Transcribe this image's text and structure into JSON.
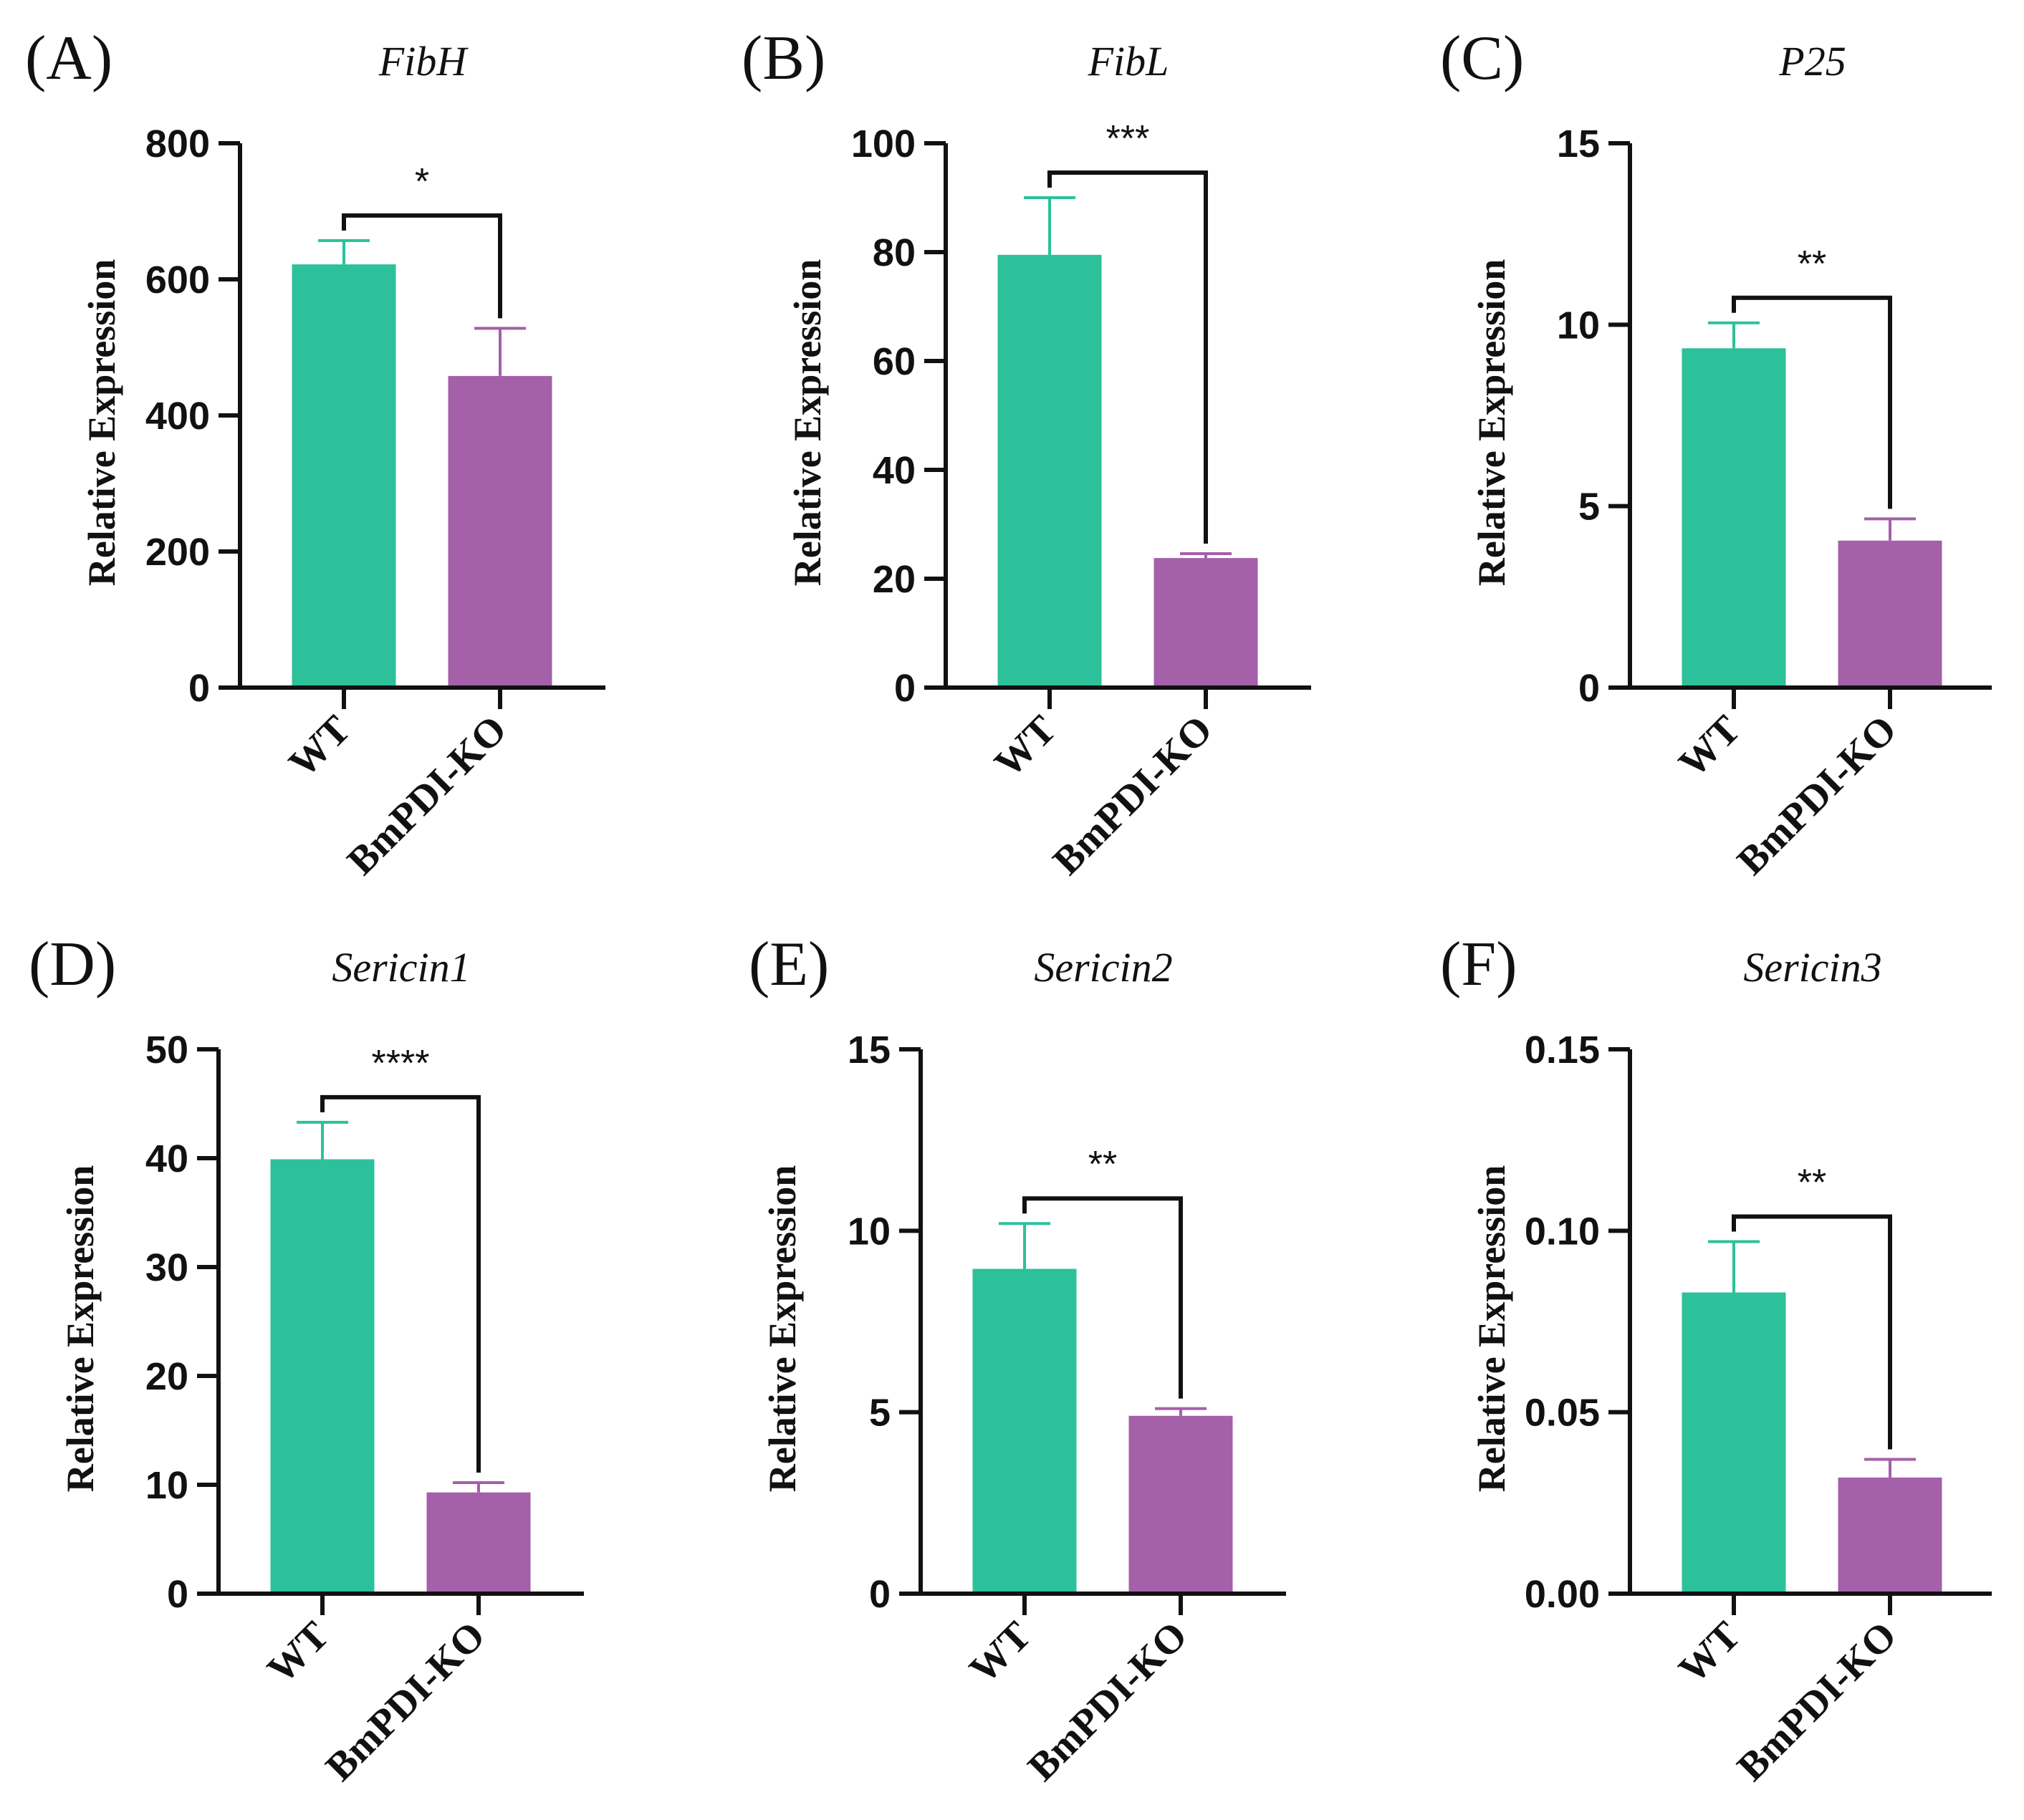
{
  "figure": {
    "colors": {
      "wt": "#2cc19a",
      "ko": "#a460a9",
      "axis": "#111111"
    }
  },
  "chart_data": [
    {
      "type": "bar",
      "panel_label": "(A)",
      "title": "FibH",
      "ylabel": "Relative Expression",
      "categories": [
        "WT",
        "BmPDI-KO"
      ],
      "values": [
        622,
        458
      ],
      "errors": [
        35,
        70
      ],
      "ylim": [
        0,
        800
      ],
      "yticks": [
        "0",
        "200",
        "400",
        "600",
        "800"
      ],
      "significance": "*"
    },
    {
      "type": "bar",
      "panel_label": "(B)",
      "title": "FibL",
      "ylabel": "Relative Expression",
      "categories": [
        "WT",
        "BmPDI-KO"
      ],
      "values": [
        79.5,
        23.8
      ],
      "errors": [
        10.5,
        0.8
      ],
      "ylim": [
        0,
        100
      ],
      "yticks": [
        "0",
        "20",
        "40",
        "60",
        "80",
        "100"
      ],
      "significance": "***"
    },
    {
      "type": "bar",
      "panel_label": "(C)",
      "title": "P25",
      "ylabel": "Relative Expression",
      "categories": [
        "WT",
        "BmPDI-KO"
      ],
      "values": [
        9.35,
        4.05
      ],
      "errors": [
        0.7,
        0.6
      ],
      "ylim": [
        0,
        15
      ],
      "yticks": [
        "0",
        "5",
        "10",
        "15"
      ],
      "significance": "**"
    },
    {
      "type": "bar",
      "panel_label": "(D)",
      "title": "Sericin1",
      "ylabel": "Relative Expression",
      "categories": [
        "WT",
        "BmPDI-KO"
      ],
      "values": [
        39.9,
        9.3
      ],
      "errors": [
        3.4,
        0.9
      ],
      "ylim": [
        0,
        50
      ],
      "yticks": [
        "0",
        "10",
        "20",
        "30",
        "40",
        "50"
      ],
      "significance": "****"
    },
    {
      "type": "bar",
      "panel_label": "(E)",
      "title": "Sericin2",
      "ylabel": "Relative Expression",
      "categories": [
        "WT",
        "BmPDI-KO"
      ],
      "values": [
        8.95,
        4.9
      ],
      "errors": [
        1.25,
        0.2
      ],
      "ylim": [
        0,
        15
      ],
      "yticks": [
        "0",
        "5",
        "10",
        "15"
      ],
      "significance": "**"
    },
    {
      "type": "bar",
      "panel_label": "(F)",
      "title": "Sericin3",
      "ylabel": "Relative Expression",
      "categories": [
        "WT",
        "BmPDI-KO"
      ],
      "values": [
        0.083,
        0.032
      ],
      "errors": [
        0.014,
        0.005
      ],
      "ylim": [
        0,
        0.15
      ],
      "yticks": [
        "0.00",
        "0.05",
        "0.10",
        "0.15"
      ],
      "significance": "**"
    }
  ]
}
